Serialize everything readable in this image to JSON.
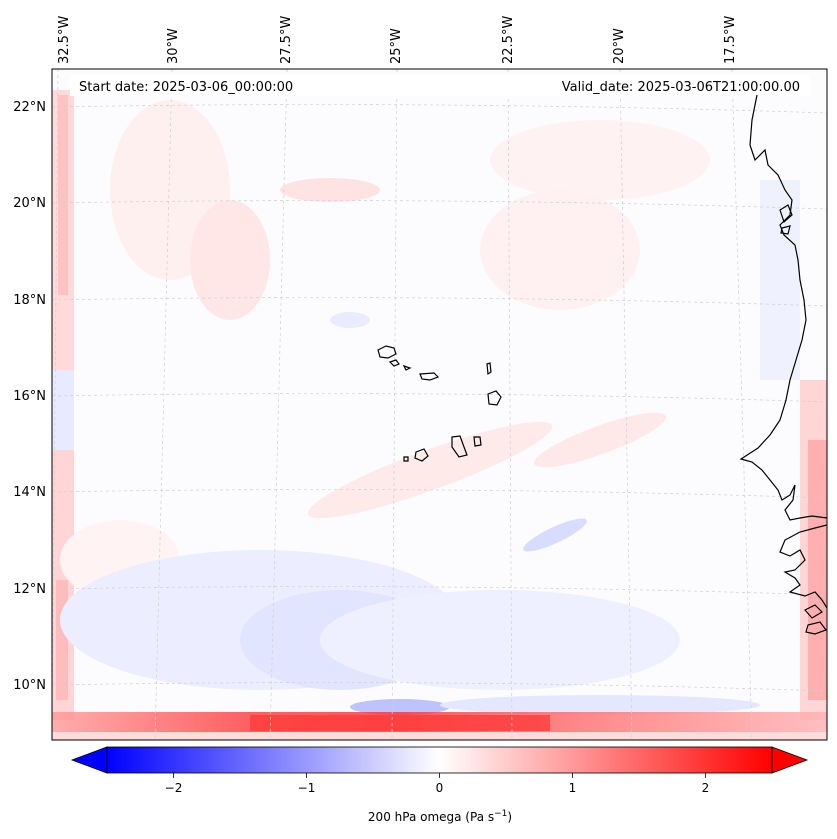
{
  "map": {
    "start_date": "Start date: 2025-03-06_00:00:00",
    "valid_date": "Valid_date: 2025-03-06T21:00:00.00",
    "longitude_labels": [
      "32.5°W",
      "30°W",
      "27.5°W",
      "25°W",
      "22.5°W",
      "20°W",
      "17.5°W"
    ],
    "latitude_labels": [
      "22°N",
      "20°N",
      "18°N",
      "16°N",
      "14°N",
      "12°N",
      "10°N"
    ],
    "variable": "200 hPa omega"
  },
  "colorbar": {
    "label_main": "200 hPa omega (Pa s",
    "label_exp": "−1",
    "label_close": ")",
    "ticks": [
      {
        "label": "−2",
        "value": -2
      },
      {
        "label": "−1",
        "value": -1
      },
      {
        "label": "0",
        "value": 0
      },
      {
        "label": "1",
        "value": 1
      },
      {
        "label": "2",
        "value": 2
      }
    ],
    "range": [
      -2.5,
      2.5
    ],
    "colormap": "bwr",
    "colors": {
      "negative": "#0000ff",
      "neutral": "#ffffff",
      "positive": "#ff0000"
    }
  }
}
